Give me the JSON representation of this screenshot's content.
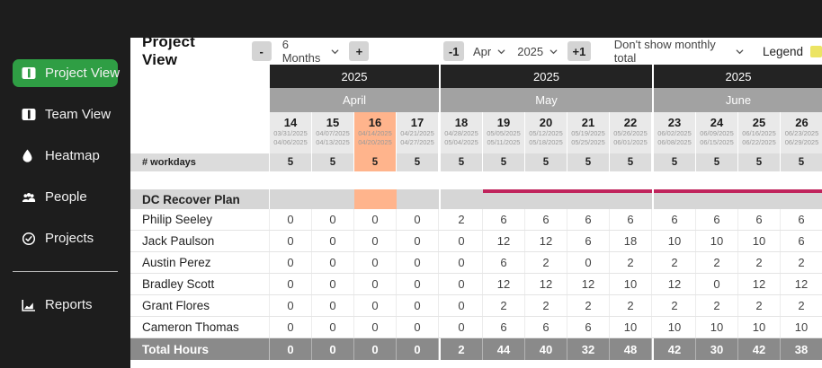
{
  "colors": {
    "sidebar_active": "#2f9e44",
    "current_week_highlight": "#ffb48c",
    "project_bar": "#c0245c",
    "legend_swatch": "#ece463"
  },
  "sidebar": {
    "items": [
      {
        "label": "Project View",
        "icon": "project-view-icon",
        "active": true
      },
      {
        "label": "Team View",
        "icon": "team-view-icon",
        "active": false
      },
      {
        "label": "Heatmap",
        "icon": "droplet-icon",
        "active": false
      },
      {
        "label": "People",
        "icon": "people-icon",
        "active": false
      },
      {
        "label": "Projects",
        "icon": "check-circle-icon",
        "active": false
      },
      {
        "label": "Reports",
        "icon": "chart-icon",
        "active": false,
        "divider_before": true
      }
    ]
  },
  "toolbar": {
    "title": "Project View",
    "zoom_out_label": "-",
    "range_value": "6 Months",
    "zoom_in_label": "+",
    "prev_label": "-1",
    "month_value": "Apr",
    "year_value": "2025",
    "next_label": "+1",
    "monthly_total_value": "Don't show monthly total",
    "legend_label": "Legend"
  },
  "timeline": {
    "highlight_week": "16",
    "months": [
      {
        "name": "April",
        "year": "2025",
        "weeks": [
          {
            "num": "14",
            "start": "03/31/2025",
            "end": "04/06/2025"
          },
          {
            "num": "15",
            "start": "04/07/2025",
            "end": "04/13/2025"
          },
          {
            "num": "16",
            "start": "04/14/2025",
            "end": "04/20/2025"
          },
          {
            "num": "17",
            "start": "04/21/2025",
            "end": "04/27/2025"
          }
        ]
      },
      {
        "name": "May",
        "year": "2025",
        "weeks": [
          {
            "num": "18",
            "start": "04/28/2025",
            "end": "05/04/2025"
          },
          {
            "num": "19",
            "start": "05/05/2025",
            "end": "05/11/2025"
          },
          {
            "num": "20",
            "start": "05/12/2025",
            "end": "05/18/2025"
          },
          {
            "num": "21",
            "start": "05/19/2025",
            "end": "05/25/2025"
          },
          {
            "num": "22",
            "start": "05/26/2025",
            "end": "06/01/2025"
          }
        ]
      },
      {
        "name": "June",
        "year": "2025",
        "weeks": [
          {
            "num": "23",
            "start": "06/02/2025",
            "end": "06/08/2025"
          },
          {
            "num": "24",
            "start": "06/09/2025",
            "end": "06/15/2025"
          },
          {
            "num": "25",
            "start": "06/16/2025",
            "end": "06/22/2025"
          },
          {
            "num": "26",
            "start": "06/23/2025",
            "end": "06/29/2025"
          }
        ]
      }
    ]
  },
  "table": {
    "workdays_label": "# workdays",
    "workdays": [
      "5",
      "5",
      "5",
      "5",
      "5",
      "5",
      "5",
      "5",
      "5",
      "5",
      "5",
      "5",
      "5"
    ],
    "project": {
      "name": "DC Recover Plan",
      "bar_start_week": "19"
    },
    "rows": [
      {
        "name": "Philip Seeley",
        "values": [
          "0",
          "0",
          "0",
          "0",
          "2",
          "6",
          "6",
          "6",
          "6",
          "6",
          "6",
          "6",
          "6"
        ]
      },
      {
        "name": "Jack Paulson",
        "values": [
          "0",
          "0",
          "0",
          "0",
          "0",
          "12",
          "12",
          "6",
          "18",
          "10",
          "10",
          "10",
          "6"
        ]
      },
      {
        "name": "Austin Perez",
        "values": [
          "0",
          "0",
          "0",
          "0",
          "0",
          "6",
          "2",
          "0",
          "2",
          "2",
          "2",
          "2",
          "2"
        ]
      },
      {
        "name": "Bradley Scott",
        "values": [
          "0",
          "0",
          "0",
          "0",
          "0",
          "12",
          "12",
          "12",
          "10",
          "12",
          "0",
          "12",
          "12"
        ]
      },
      {
        "name": "Grant Flores",
        "values": [
          "0",
          "0",
          "0",
          "0",
          "0",
          "2",
          "2",
          "2",
          "2",
          "2",
          "2",
          "2",
          "2"
        ]
      },
      {
        "name": "Cameron Thomas",
        "values": [
          "0",
          "0",
          "0",
          "0",
          "0",
          "6",
          "6",
          "6",
          "10",
          "10",
          "10",
          "10",
          "10"
        ]
      }
    ],
    "total": {
      "label": "Total Hours",
      "values": [
        "0",
        "0",
        "0",
        "0",
        "2",
        "44",
        "40",
        "32",
        "48",
        "42",
        "30",
        "42",
        "38"
      ]
    }
  }
}
